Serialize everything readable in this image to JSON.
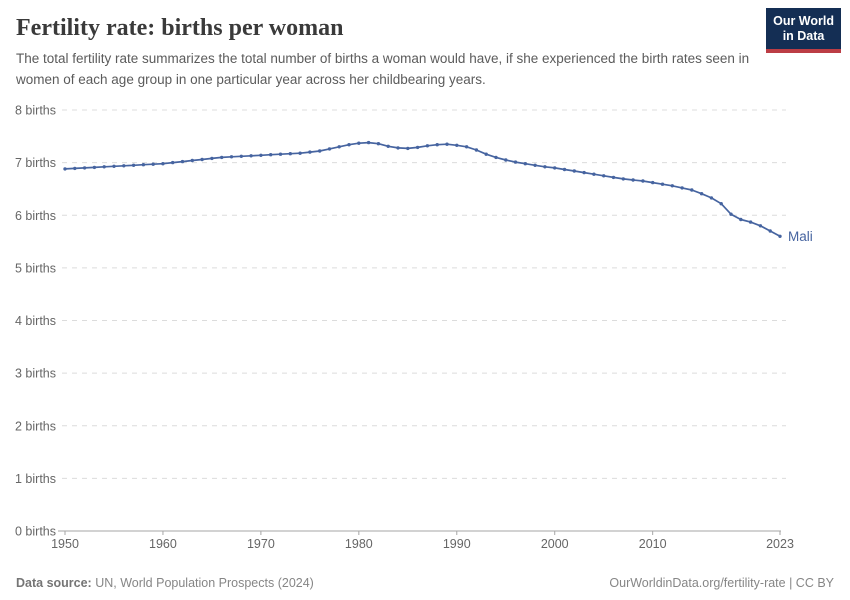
{
  "header": {
    "title": "Fertility rate: births per woman",
    "subtitle": "The total fertility rate summarizes the total number of births a woman would have, if she experienced the birth rates seen in women of each age group in one particular year across her childbearing years.",
    "logo": {
      "line1": "Our World",
      "line2": "in Data"
    }
  },
  "chart_data": {
    "type": "line",
    "title": "Fertility rate: births per woman",
    "entity": "Mali",
    "xlabel": "",
    "ylabel": "births",
    "ylim": [
      0,
      8
    ],
    "yticks": [
      0,
      1,
      2,
      3,
      4,
      5,
      6,
      7,
      8
    ],
    "ytick_format": "{v} births",
    "xticks": [
      1950,
      1960,
      1970,
      1980,
      1990,
      2000,
      2010,
      2023
    ],
    "grid": "horizontal-dashed",
    "legend_position": "end-of-line",
    "line_color": "#4664a0",
    "x": [
      1950,
      1951,
      1952,
      1953,
      1954,
      1955,
      1956,
      1957,
      1958,
      1959,
      1960,
      1961,
      1962,
      1963,
      1964,
      1965,
      1966,
      1967,
      1968,
      1969,
      1970,
      1971,
      1972,
      1973,
      1974,
      1975,
      1976,
      1977,
      1978,
      1979,
      1980,
      1981,
      1982,
      1983,
      1984,
      1985,
      1986,
      1987,
      1988,
      1989,
      1990,
      1991,
      1992,
      1993,
      1994,
      1995,
      1996,
      1997,
      1998,
      1999,
      2000,
      2001,
      2002,
      2003,
      2004,
      2005,
      2006,
      2007,
      2008,
      2009,
      2010,
      2011,
      2012,
      2013,
      2014,
      2015,
      2016,
      2017,
      2018,
      2019,
      2020,
      2021,
      2022,
      2023
    ],
    "series": [
      {
        "name": "Mali",
        "values": [
          6.88,
          6.89,
          6.9,
          6.91,
          6.92,
          6.93,
          6.94,
          6.95,
          6.96,
          6.97,
          6.98,
          7.0,
          7.02,
          7.04,
          7.06,
          7.08,
          7.1,
          7.11,
          7.12,
          7.13,
          7.14,
          7.15,
          7.16,
          7.17,
          7.18,
          7.2,
          7.22,
          7.26,
          7.3,
          7.34,
          7.37,
          7.38,
          7.36,
          7.31,
          7.28,
          7.27,
          7.29,
          7.32,
          7.34,
          7.35,
          7.33,
          7.3,
          7.24,
          7.16,
          7.1,
          7.05,
          7.01,
          6.98,
          6.95,
          6.92,
          6.9,
          6.87,
          6.84,
          6.81,
          6.78,
          6.75,
          6.72,
          6.69,
          6.67,
          6.65,
          6.62,
          6.59,
          6.56,
          6.52,
          6.48,
          6.41,
          6.33,
          6.22,
          6.02,
          5.92,
          5.87,
          5.8,
          5.7,
          5.6
        ]
      }
    ]
  },
  "footer": {
    "source_label": "Data source:",
    "source_value": "UN, World Population Prospects (2024)",
    "credit": "OurWorldinData.org/fertility-rate | CC BY"
  },
  "colors": {
    "line": "#4664a0",
    "logo_background": "#142e54",
    "logo_accent": "#bc3d45",
    "title_text": "#3a3a3a",
    "subtitle_text": "#5b5b5b",
    "axis_text": "#666666",
    "gridline": "#dcdcdc",
    "axis_line": "#a6a6a6"
  }
}
